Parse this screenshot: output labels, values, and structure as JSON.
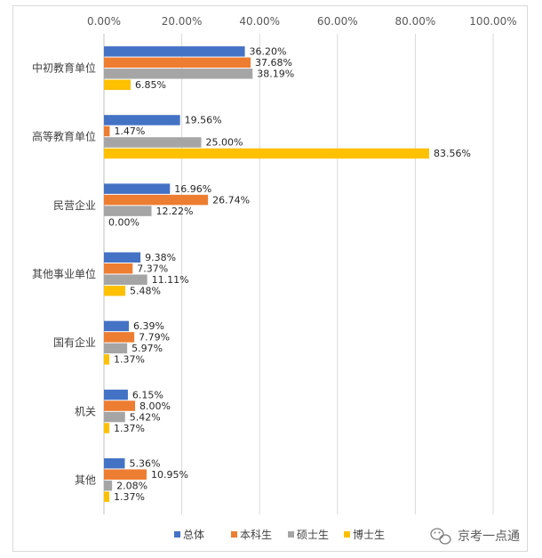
{
  "chart_data": {
    "type": "bar",
    "orientation": "horizontal",
    "categories": [
      "中初教育单位",
      "高等教育单位",
      "民营企业",
      "其他事业单位",
      "国有企业",
      "机关",
      "其他"
    ],
    "series": [
      {
        "name": "总体",
        "color": "#4472c4",
        "values": [
          36.2,
          19.56,
          16.96,
          9.38,
          6.39,
          6.15,
          5.36
        ],
        "labels": [
          "36.20%",
          "19.56%",
          "16.96%",
          "9.38%",
          "6.39%",
          "6.15%",
          "5.36%"
        ]
      },
      {
        "name": "本科生",
        "color": "#ed7d31",
        "values": [
          37.68,
          1.47,
          26.74,
          7.37,
          7.79,
          8.0,
          10.95
        ],
        "labels": [
          "37.68%",
          "1.47%",
          "26.74%",
          "7.37%",
          "7.79%",
          "8.00%",
          "10.95%"
        ]
      },
      {
        "name": "硕士生",
        "color": "#a5a5a5",
        "values": [
          38.19,
          25.0,
          12.22,
          11.11,
          5.97,
          5.42,
          2.08
        ],
        "labels": [
          "38.19%",
          "25.00%",
          "12.22%",
          "11.11%",
          "5.97%",
          "5.42%",
          "2.08%"
        ]
      },
      {
        "name": "博士生",
        "color": "#ffc000",
        "values": [
          6.85,
          83.56,
          0.0,
          5.48,
          1.37,
          1.37,
          1.37
        ],
        "labels": [
          "6.85%",
          "83.56%",
          "0.00%",
          "5.48%",
          "1.37%",
          "1.37%",
          "1.37%"
        ]
      }
    ],
    "xlim": [
      0,
      100
    ],
    "xticks": [
      0,
      20,
      40,
      60,
      80,
      100
    ],
    "xtick_labels": [
      "0.00%",
      "20.00%",
      "40.00%",
      "60.00%",
      "80.00%",
      "100.00%"
    ],
    "axis_position": "top",
    "grid": true,
    "legend": "bottom"
  },
  "watermark": {
    "text": "京考一点通",
    "icon": "wechat-icon"
  }
}
